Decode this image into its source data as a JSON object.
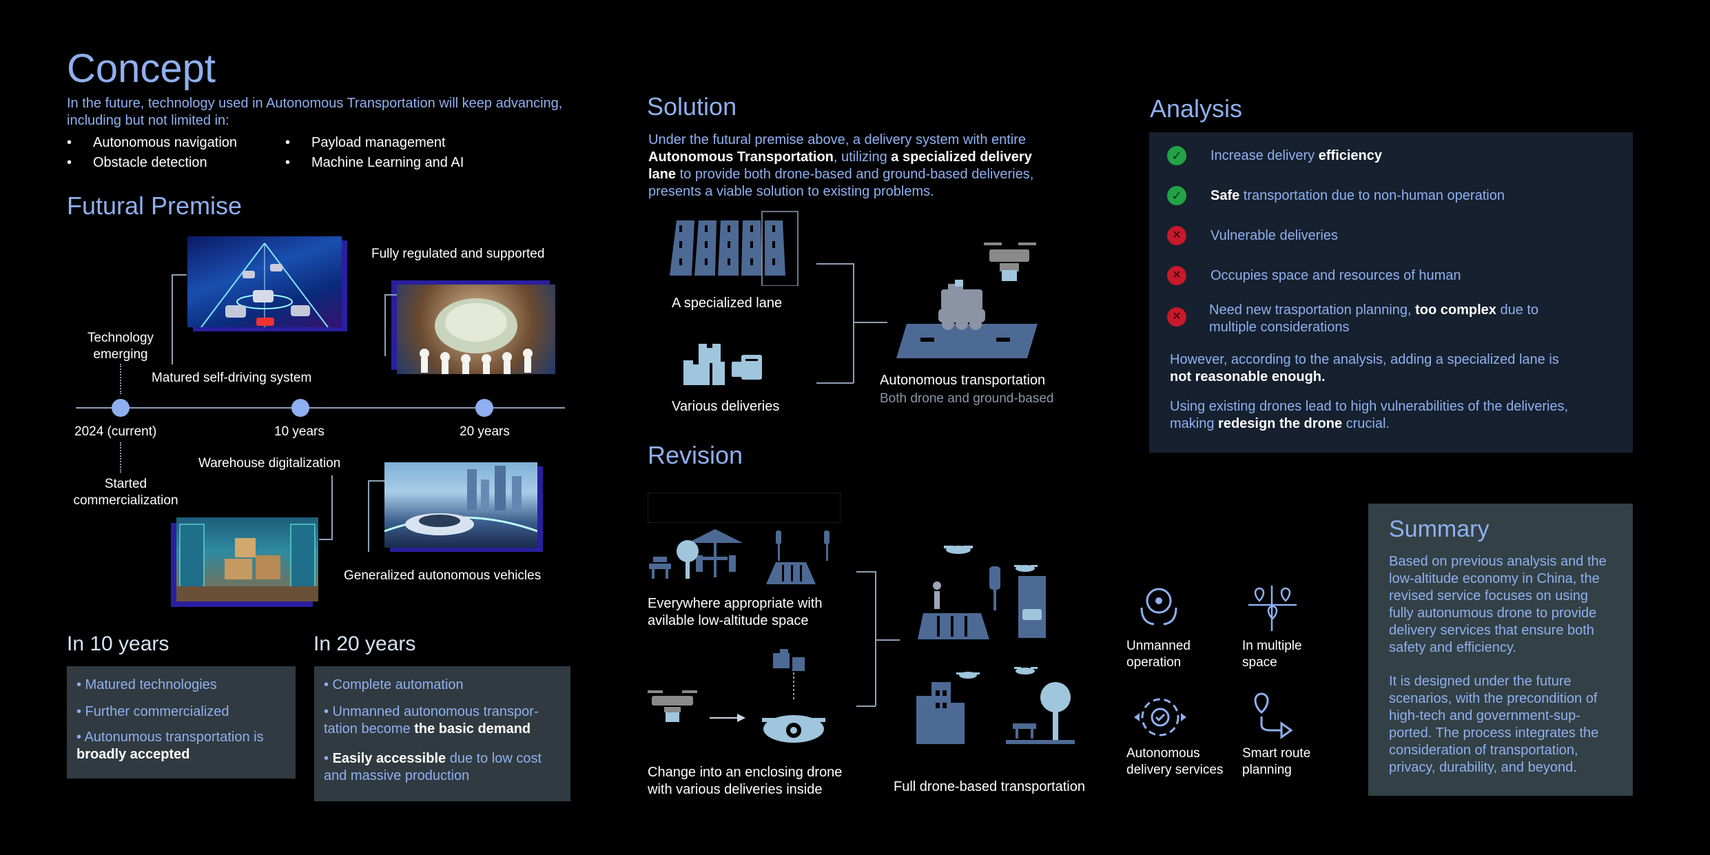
{
  "concept": {
    "title": "Concept",
    "intro": "In the future, technology used in Autonomous Transportation will keep advancing, including but not limited in:",
    "bullets": [
      "Autonomous navigation",
      "Payload management",
      "Obstacle detection",
      "Machine Learning and AI"
    ]
  },
  "premise": {
    "title": "Futural Premise",
    "label_tech": "Technology emerging",
    "label_matured": "Matured self-driving system",
    "label_regulated": "Fully regulated and supported",
    "label_started": "Started commercialization",
    "label_warehouse": "Warehouse digitalization",
    "label_generalized": "Generalized autonomous vehicles",
    "timeline": [
      "2024 (current)",
      "10 years",
      "20 years"
    ]
  },
  "ten_years": {
    "title": "In 10 years",
    "items": [
      "• Matured technologies",
      "• Further commercialized",
      "• Autonumous transportation is",
      "broadly accepted"
    ]
  },
  "twenty_years": {
    "title": "In 20 years",
    "item1": "• Complete automation",
    "item2a": "• Unmanned autonomous transpor-",
    "item2b": "tation become ",
    "item2c": "the basic demand",
    "item3a": "• ",
    "item3b": "Easily accessible",
    "item3c": " due to low cost",
    "item3d": "and massive production"
  },
  "solution": {
    "title": "Solution",
    "p1": "Under the futural premise above, a delivery system with entire",
    "p2a": "Autonomous Transportation",
    "p2b": ", utilizing ",
    "p2c": "a specialized delivery",
    "p3a": "lane",
    "p3b": " to provide both drone-based and ground-based deliveries,",
    "p4": "presents a viable solution to existing problems.",
    "label_lane": "A specialized lane",
    "label_deliveries": "Various deliveries",
    "label_auto": "Autonomous transportation",
    "label_auto_sub": "Both drone and ground-based"
  },
  "analysis": {
    "title": "Analysis",
    "row1a": "Increase delivery ",
    "row1b": "efficiency",
    "row2a": "Safe",
    "row2b": " transportation due to non-human operation",
    "row3": "Vulnerable deliveries",
    "row4": "Occupies space and resources of human",
    "row5a": "Need new trasportation planning, ",
    "row5b": "too complex",
    "row5c": " due to",
    "row5d": "multiple considerations",
    "p1a": "However, according to the analysis, adding a specialized lane is",
    "p1b": "not reasonable enough",
    "p1c": ".",
    "p2a": "Using existing drones lead to high vulnerabilities of the deliveries,",
    "p2b": "making ",
    "p2c": "redesign the drone",
    "p2d": " crucial."
  },
  "revision": {
    "title": "Revision",
    "label_everywhere1": "Everywhere appropriate with",
    "label_everywhere2": "avilable low-altitude space",
    "label_change1": "Change into an enclosing drone",
    "label_change2": "with various deliveries inside",
    "label_full": "Full drone-based transportation",
    "features": [
      "Unmanned",
      "operation",
      "In multiple",
      "space",
      "Autonomous",
      "delivery services",
      "Smart route",
      "planning"
    ]
  },
  "summary": {
    "title": "Summary",
    "p1": [
      "Based on previous analysis and the",
      "low-altitude economy in China, the",
      "revised service focuses on using",
      "fully autonumous drone to provide",
      "delivery services that ensure both",
      "safety and efficiency."
    ],
    "p2": [
      "It is designed under the future",
      "scenarios, with the precondition of",
      "high-tech and government-sup-",
      "ported. The process integrates the",
      "consideration of transportation,",
      "privacy, durability, and beyond."
    ]
  },
  "colors": {
    "accent": "#8fb0f0",
    "panel": "#16202e",
    "box": "#313a40",
    "ok": "#21a348",
    "bad": "#c8182b"
  }
}
